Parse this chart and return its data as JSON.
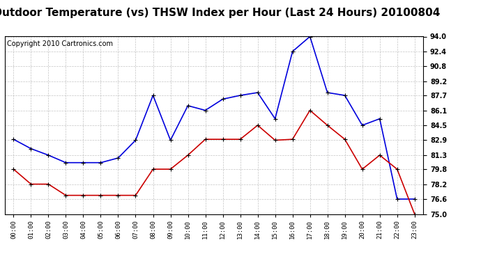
{
  "title": "Outdoor Temperature (vs) THSW Index per Hour (Last 24 Hours) 20100804",
  "copyright": "Copyright 2010 Cartronics.com",
  "hours": [
    "00:00",
    "01:00",
    "02:00",
    "03:00",
    "04:00",
    "05:00",
    "06:00",
    "07:00",
    "08:00",
    "09:00",
    "10:00",
    "11:00",
    "12:00",
    "13:00",
    "14:00",
    "15:00",
    "16:00",
    "17:00",
    "18:00",
    "19:00",
    "20:00",
    "21:00",
    "22:00",
    "23:00"
  ],
  "thsw": [
    83.0,
    82.0,
    81.3,
    80.5,
    80.5,
    80.5,
    81.0,
    82.9,
    87.7,
    82.9,
    86.6,
    86.1,
    87.3,
    87.7,
    88.0,
    85.2,
    92.4,
    94.0,
    88.0,
    87.7,
    84.5,
    85.2,
    76.6,
    76.6
  ],
  "temp": [
    79.8,
    78.2,
    78.2,
    77.0,
    77.0,
    77.0,
    77.0,
    77.0,
    79.8,
    79.8,
    81.3,
    83.0,
    83.0,
    83.0,
    84.5,
    82.9,
    83.0,
    86.1,
    84.5,
    83.0,
    79.8,
    81.3,
    79.8,
    75.0
  ],
  "ylim_min": 75.0,
  "ylim_max": 94.0,
  "yticks": [
    75.0,
    76.6,
    78.2,
    79.8,
    81.3,
    82.9,
    84.5,
    86.1,
    87.7,
    89.2,
    90.8,
    92.4,
    94.0
  ],
  "thsw_color": "#0000dd",
  "temp_color": "#cc0000",
  "bg_color": "#ffffff",
  "grid_color": "#aaaaaa",
  "title_fontsize": 11,
  "copyright_fontsize": 7
}
